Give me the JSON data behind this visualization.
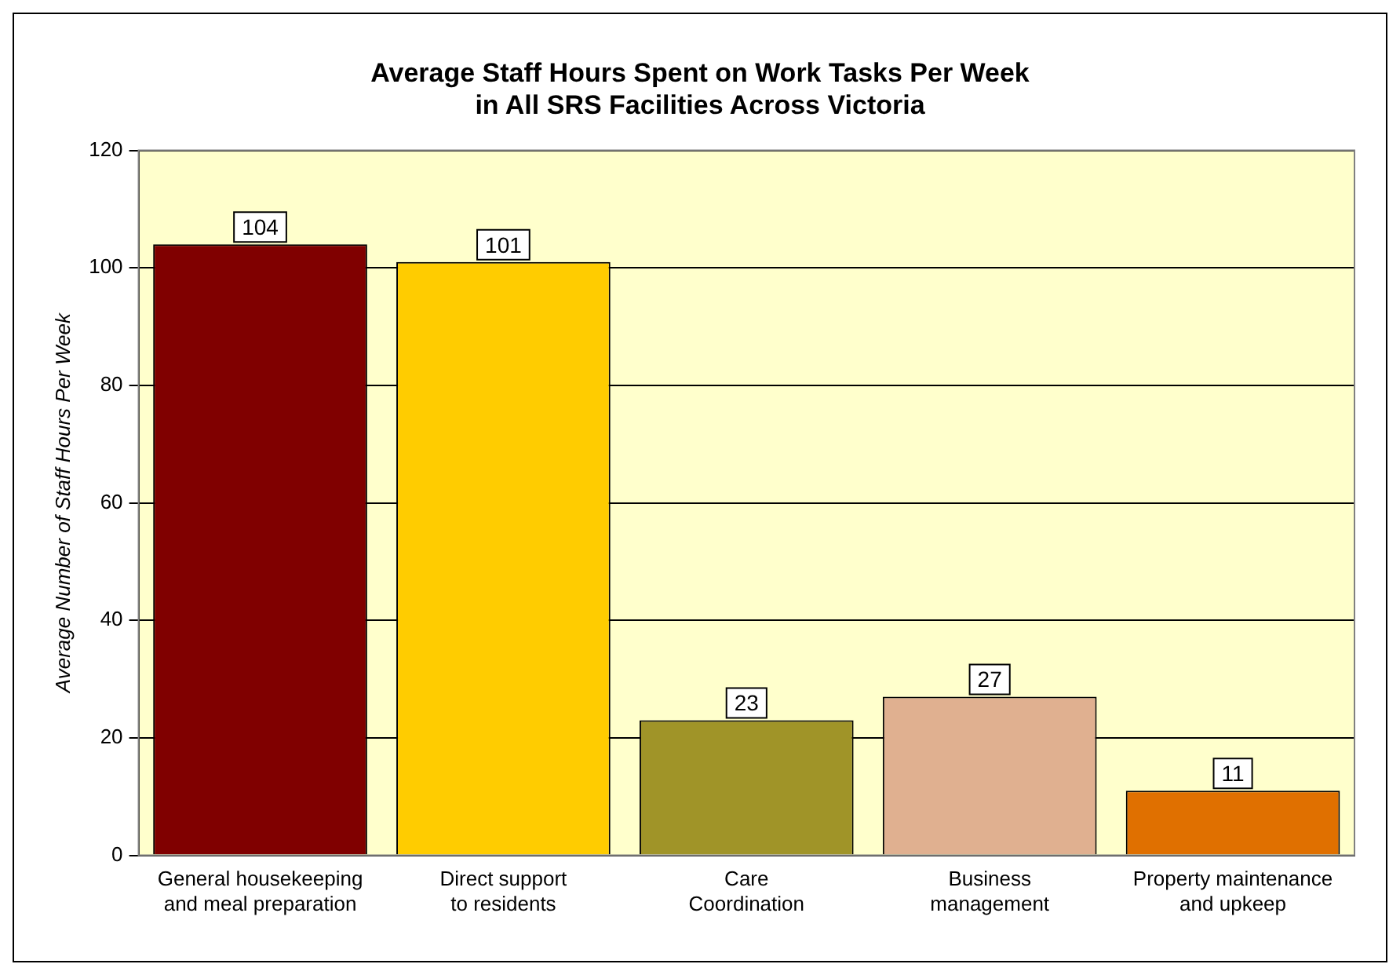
{
  "chart_data": {
    "type": "bar",
    "title": "Average Staff Hours Spent on Work Tasks Per Week\nin All SRS Facilities Across Victoria",
    "ylabel": "Average Number of Staff Hours Per Week",
    "categories": [
      "General housekeeping\nand meal preparation",
      "Direct support\nto residents",
      "Care\nCoordination",
      "Business\nmanagement",
      "Property maintenance\nand upkeep"
    ],
    "values": [
      104,
      101,
      23,
      27,
      11
    ],
    "colors": [
      "#800000",
      "#ffcc00",
      "#a09428",
      "#e0b090",
      "#e07000"
    ],
    "ylim": [
      0,
      120
    ],
    "yticks": [
      0,
      20,
      40,
      60,
      80,
      100,
      120
    ],
    "grid": "y",
    "data_labels": true,
    "legend": false
  }
}
